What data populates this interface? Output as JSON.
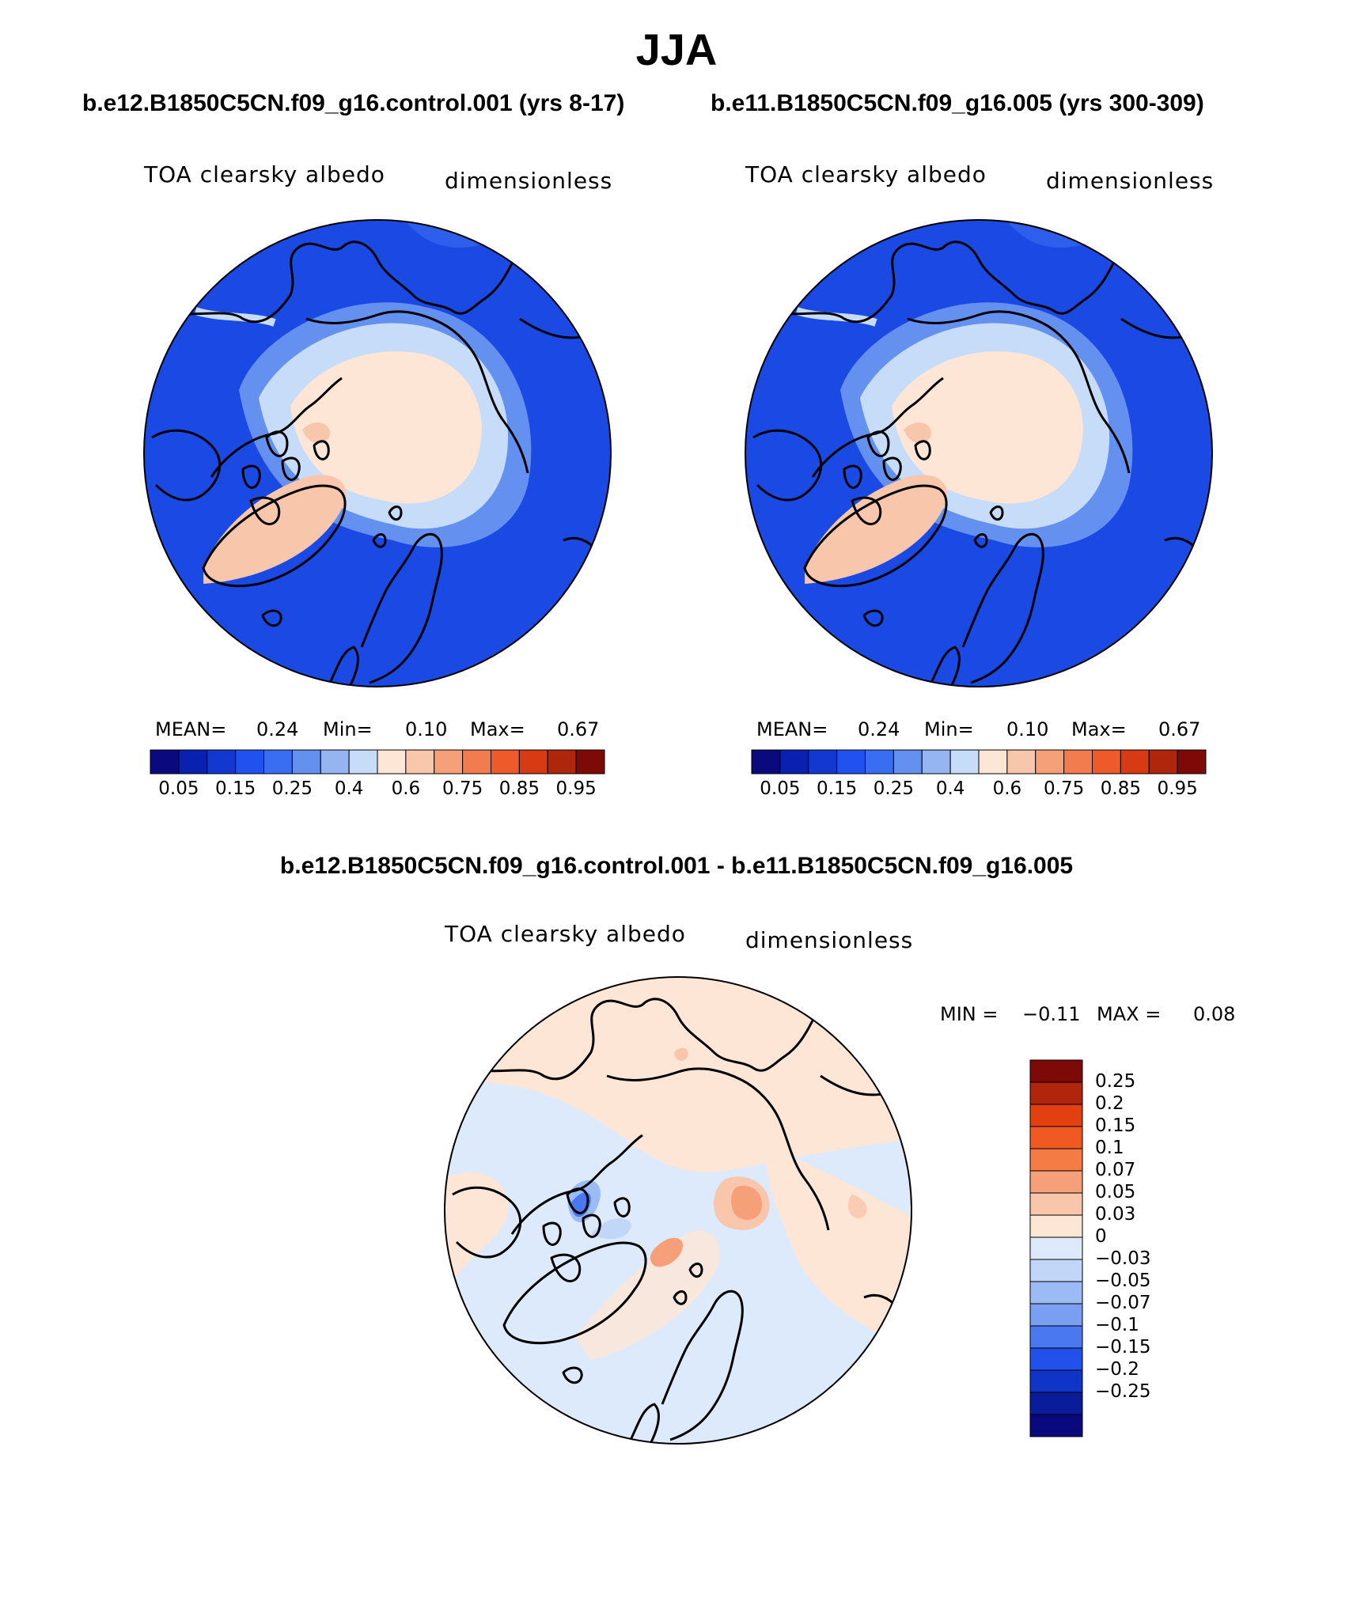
{
  "figure": {
    "season": "JJA",
    "case1_title": "b.e12.B1850C5CN.f09_g16.control.001 (yrs 8-17)",
    "case2_title": "b.e11.B1850C5CN.f09_g16.005 (yrs 300-309)",
    "diff_title": "b.e12.B1850C5CN.f09_g16.control.001 - b.e11.B1850C5CN.f09_g16.005"
  },
  "panels": [
    {
      "variable": "TOA clearsky albedo",
      "units": "dimensionless",
      "stats": {
        "mean_label": "MEAN=",
        "mean": "0.24",
        "min_label": "Min=",
        "min": "0.10",
        "max_label": "Max=",
        "max": "0.67"
      }
    },
    {
      "variable": "TOA clearsky albedo",
      "units": "dimensionless",
      "stats": {
        "mean_label": "MEAN=",
        "mean": "0.24",
        "min_label": "Min=",
        "min": "0.10",
        "max_label": "Max=",
        "max": "0.67"
      }
    },
    {
      "variable": "TOA clearsky albedo",
      "units": "dimensionless",
      "stats": {
        "min_label": "MIN =",
        "min": "−0.11",
        "max_label": "MAX =",
        "max": "0.08"
      }
    }
  ],
  "colorbar_main": {
    "colors": [
      "#0a0a7e",
      "#0a20ae",
      "#1238d0",
      "#1f52ee",
      "#3a6ef2",
      "#6490f0",
      "#94b4f2",
      "#c6dcf8",
      "#fde6d6",
      "#f8c6aa",
      "#f6a07a",
      "#f27c4e",
      "#ee5a2a",
      "#d83a14",
      "#b0260c",
      "#7e0a08"
    ],
    "tick_labels": [
      "0.05",
      "0.15",
      "0.25",
      "0.4",
      "0.6",
      "0.75",
      "0.85",
      "0.95"
    ]
  },
  "colorbar_diff": {
    "colors": [
      "#7e0a08",
      "#b0260c",
      "#e2400e",
      "#f05a22",
      "#f47c44",
      "#f6a07a",
      "#f8c6aa",
      "#fde6d6",
      "#dceafc",
      "#c2d6f8",
      "#9cbaf4",
      "#7a9ef2",
      "#4a78f0",
      "#2250ea",
      "#1034c8",
      "#0a1c9a",
      "#0a0a7e"
    ],
    "tick_labels": [
      "0.25",
      "0.2",
      "0.15",
      "0.1",
      "0.07",
      "0.05",
      "0.03",
      "0",
      "−0.03",
      "−0.05",
      "−0.07",
      "−0.1",
      "−0.15",
      "−0.2",
      "−0.25"
    ]
  }
}
